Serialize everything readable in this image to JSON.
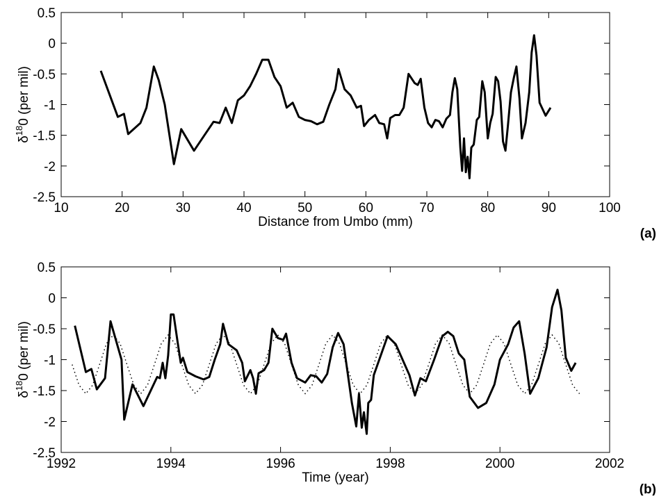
{
  "chart_data": [
    {
      "type": "line",
      "xlabel": "Distance from Umbo (mm)",
      "ylabel": [
        "δ",
        "18",
        "0 (per mil)"
      ],
      "panel_label": "(a)",
      "xlim": [
        10,
        100
      ],
      "xticks": [
        10,
        20,
        30,
        40,
        50,
        60,
        70,
        80,
        90,
        100
      ],
      "ylim": [
        -2.5,
        0.5
      ],
      "yticks": [
        -2.5,
        -2,
        -1.5,
        -1,
        -0.5,
        0,
        0.5
      ],
      "series": [
        {
          "color": "#000000",
          "style": "solid",
          "x": [
            16.5,
            18,
            19.3,
            20.3,
            21,
            23,
            24,
            25.2,
            26,
            27,
            28.5,
            29.7,
            31.8,
            33.5,
            35,
            36,
            37,
            38,
            39,
            40,
            41,
            42,
            43,
            44,
            45,
            46,
            47,
            48,
            49,
            50,
            51,
            52,
            53,
            54,
            55,
            55.5,
            56.5,
            57.5,
            58.5,
            59.2,
            59.7,
            60.5,
            61.5,
            62.2,
            63,
            63.5,
            64,
            64.8,
            65.5,
            66.2,
            67,
            68,
            68.5,
            69,
            69.6,
            70.2,
            70.8,
            71.4,
            72,
            72.6,
            73.2,
            73.8,
            74.2,
            74.6,
            75,
            75.5,
            75.8,
            76.1,
            76.4,
            76.7,
            77,
            77.3,
            77.7,
            78.2,
            78.6,
            79.1,
            79.5,
            80,
            80.4,
            80.8,
            81.3,
            81.7,
            82.1,
            82.5,
            82.9,
            83.3,
            83.8,
            84.3,
            84.7,
            85.2,
            85.6,
            86.2,
            86.8,
            87.2,
            87.6,
            88,
            88.5,
            89.5,
            90.3
          ],
          "values": [
            -0.45,
            -0.85,
            -1.2,
            -1.15,
            -1.48,
            -1.3,
            -1.05,
            -0.38,
            -0.6,
            -1.0,
            -1.97,
            -1.4,
            -1.75,
            -1.5,
            -1.28,
            -1.3,
            -1.05,
            -1.3,
            -0.93,
            -0.85,
            -0.7,
            -0.5,
            -0.27,
            -0.27,
            -0.55,
            -0.7,
            -1.05,
            -0.97,
            -1.2,
            -1.25,
            -1.27,
            -1.32,
            -1.28,
            -1.0,
            -0.75,
            -0.42,
            -0.75,
            -0.85,
            -1.05,
            -1.02,
            -1.35,
            -1.25,
            -1.17,
            -1.3,
            -1.32,
            -1.55,
            -1.22,
            -1.17,
            -1.17,
            -1.05,
            -0.5,
            -0.65,
            -0.68,
            -0.58,
            -1.05,
            -1.3,
            -1.37,
            -1.25,
            -1.27,
            -1.37,
            -1.23,
            -1.17,
            -0.8,
            -0.57,
            -0.75,
            -1.7,
            -2.08,
            -1.55,
            -2.1,
            -1.85,
            -2.2,
            -1.7,
            -1.65,
            -1.25,
            -1.2,
            -0.62,
            -0.8,
            -1.55,
            -1.3,
            -1.15,
            -0.55,
            -0.62,
            -0.95,
            -1.6,
            -1.75,
            -1.35,
            -0.8,
            -0.55,
            -0.38,
            -0.9,
            -1.55,
            -1.3,
            -0.8,
            -0.15,
            0.13,
            -0.2,
            -0.97,
            -1.18,
            -1.05
          ]
        }
      ]
    },
    {
      "type": "line",
      "xlabel": "Time (year)",
      "ylabel": [
        "δ",
        "18",
        "0 (per mil)"
      ],
      "panel_label": "(b)",
      "xlim": [
        1992,
        2002
      ],
      "xticks": [
        1992,
        1994,
        1996,
        1998,
        2000,
        2002
      ],
      "ylim": [
        -2.5,
        0.5
      ],
      "yticks": [
        -2.5,
        -2,
        -1.5,
        -1,
        -0.5,
        0,
        0.5
      ],
      "series": [
        {
          "color": "#000000",
          "style": "dotted",
          "x": [
            1992.2,
            1992.325,
            1992.45,
            1992.575,
            1992.7,
            1992.825,
            1992.95,
            1993.075,
            1993.2,
            1993.325,
            1993.45,
            1993.575,
            1993.7,
            1993.825,
            1993.95,
            1994.075,
            1994.2,
            1994.325,
            1994.45,
            1994.575,
            1994.7,
            1994.825,
            1994.95,
            1995.075,
            1995.2,
            1995.325,
            1995.45,
            1995.575,
            1995.7,
            1995.825,
            1995.95,
            1996.075,
            1996.2,
            1996.325,
            1996.45,
            1996.575,
            1996.7,
            1996.825,
            1996.95,
            1997.075,
            1997.2,
            1997.325,
            1997.45,
            1997.575,
            1997.7,
            1997.825,
            1997.95,
            1998.075,
            1998.2,
            1998.325,
            1998.45,
            1998.575,
            1998.7,
            1998.825,
            1998.95,
            1999.075,
            1999.2,
            1999.325,
            1999.45,
            1999.575,
            1999.7,
            1999.825,
            1999.95,
            2000.075,
            2000.2,
            2000.325,
            2000.45,
            2000.575,
            2000.7,
            2000.825,
            2000.95,
            2001.075,
            2001.2,
            2001.325,
            2001.45
          ],
          "values": [
            -1.08,
            -1.41,
            -1.55,
            -1.41,
            -1.08,
            -0.74,
            -0.6,
            -0.74,
            -1.08,
            -1.41,
            -1.55,
            -1.41,
            -1.08,
            -0.74,
            -0.6,
            -0.74,
            -1.08,
            -1.41,
            -1.55,
            -1.41,
            -1.08,
            -0.74,
            -0.6,
            -0.74,
            -1.08,
            -1.41,
            -1.55,
            -1.41,
            -1.08,
            -0.74,
            -0.6,
            -0.74,
            -1.08,
            -1.41,
            -1.55,
            -1.41,
            -1.08,
            -0.74,
            -0.6,
            -0.74,
            -1.08,
            -1.41,
            -1.55,
            -1.41,
            -1.08,
            -0.74,
            -0.6,
            -0.74,
            -1.08,
            -1.41,
            -1.55,
            -1.41,
            -1.08,
            -0.74,
            -0.6,
            -0.74,
            -1.08,
            -1.41,
            -1.55,
            -1.41,
            -1.08,
            -0.74,
            -0.6,
            -0.74,
            -1.08,
            -1.41,
            -1.55,
            -1.41,
            -1.08,
            -0.74,
            -0.6,
            -0.74,
            -1.08,
            -1.41,
            -1.55
          ]
        },
        {
          "color": "#000000",
          "style": "solid",
          "x": [
            1992.25,
            1992.45,
            1992.55,
            1992.65,
            1992.8,
            1992.9,
            1993.1,
            1993.15,
            1993.3,
            1993.5,
            1993.75,
            1993.8,
            1993.85,
            1993.9,
            1993.95,
            1994.0,
            1994.05,
            1994.12,
            1994.18,
            1994.22,
            1994.3,
            1994.45,
            1994.6,
            1994.7,
            1994.8,
            1994.9,
            1994.95,
            1995.05,
            1995.2,
            1995.3,
            1995.35,
            1995.45,
            1995.5,
            1995.55,
            1995.6,
            1995.7,
            1995.78,
            1995.85,
            1995.95,
            1996.05,
            1996.1,
            1996.2,
            1996.3,
            1996.45,
            1996.55,
            1996.65,
            1996.75,
            1996.85,
            1996.95,
            1997.05,
            1997.15,
            1997.3,
            1997.38,
            1997.43,
            1997.48,
            1997.52,
            1997.57,
            1997.6,
            1997.65,
            1997.7,
            1997.8,
            1997.95,
            1998.1,
            1998.35,
            1998.45,
            1998.55,
            1998.65,
            1998.8,
            1998.95,
            1999.05,
            1999.15,
            1999.25,
            1999.35,
            1999.45,
            1999.6,
            1999.75,
            1999.9,
            2000.0,
            2000.15,
            2000.25,
            2000.35,
            2000.45,
            2000.55,
            2000.7,
            2000.85,
            2000.95,
            2001.05,
            2001.12,
            2001.2,
            2001.3,
            2001.38
          ],
          "values": [
            -0.45,
            -1.2,
            -1.15,
            -1.48,
            -1.3,
            -0.38,
            -1.0,
            -1.97,
            -1.4,
            -1.75,
            -1.28,
            -1.3,
            -1.05,
            -1.3,
            -0.93,
            -0.27,
            -0.27,
            -0.7,
            -1.05,
            -0.97,
            -1.2,
            -1.27,
            -1.32,
            -1.28,
            -1.0,
            -0.75,
            -0.42,
            -0.75,
            -0.85,
            -1.05,
            -1.35,
            -1.17,
            -1.3,
            -1.55,
            -1.22,
            -1.17,
            -1.05,
            -0.5,
            -0.65,
            -0.68,
            -0.58,
            -1.05,
            -1.3,
            -1.37,
            -1.25,
            -1.27,
            -1.37,
            -1.23,
            -0.8,
            -0.57,
            -0.75,
            -1.7,
            -2.08,
            -1.55,
            -2.1,
            -1.85,
            -2.2,
            -1.7,
            -1.65,
            -1.25,
            -1.0,
            -0.62,
            -0.75,
            -1.25,
            -1.58,
            -1.3,
            -1.35,
            -1.0,
            -0.62,
            -0.55,
            -0.62,
            -0.9,
            -1.0,
            -1.6,
            -1.78,
            -1.7,
            -1.4,
            -1.0,
            -0.75,
            -0.48,
            -0.38,
            -0.9,
            -1.55,
            -1.3,
            -0.8,
            -0.15,
            0.13,
            -0.2,
            -0.97,
            -1.18,
            -1.05
          ]
        }
      ]
    }
  ]
}
